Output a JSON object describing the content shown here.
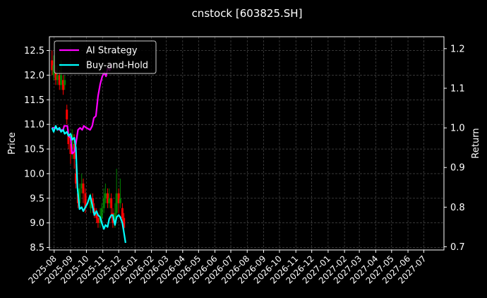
{
  "chart_data": {
    "type": "line",
    "title": "cnstock [603825.SH]",
    "ylabel": "Price",
    "y2label": "Return",
    "ylim": [
      8.45,
      12.78
    ],
    "y2lim": [
      0.692,
      1.23
    ],
    "yticks": [
      "8.5",
      "9.0",
      "9.5",
      "10.0",
      "10.5",
      "11.0",
      "11.5",
      "12.0",
      "12.5"
    ],
    "y2ticks": [
      "0.7",
      "0.8",
      "0.9",
      "1.0",
      "1.1",
      "1.2"
    ],
    "xticks": [
      "2025-08",
      "2025-09",
      "2025-10",
      "2025-11",
      "2025-12",
      "2026-01",
      "2026-02",
      "2026-03",
      "2026-04",
      "2026-05",
      "2026-06",
      "2026-07",
      "2026-08",
      "2026-09",
      "2026-10",
      "2026-11",
      "2026-12",
      "2027-01",
      "2027-02",
      "2027-03",
      "2027-04",
      "2027-05",
      "2027-06",
      "2027-07"
    ],
    "grid": true,
    "legend_position": "top-left",
    "legend": [
      {
        "name": "AI Strategy",
        "color": "#ff00ff"
      },
      {
        "name": "Buy-and-Hold",
        "color": "#00ffff"
      }
    ],
    "candles": {
      "up_color": "#008000",
      "down_color": "#ff0000",
      "bars": [
        {
          "d": "2025-07-28",
          "o": 12.3,
          "c": 12.1,
          "h": 12.5,
          "l": 12.0
        },
        {
          "d": "2025-07-31",
          "o": 12.0,
          "c": 12.2,
          "h": 12.4,
          "l": 11.9
        },
        {
          "d": "2025-08-04",
          "o": 12.1,
          "c": 11.9,
          "h": 12.2,
          "l": 11.8
        },
        {
          "d": "2025-08-07",
          "o": 11.9,
          "c": 12.0,
          "h": 12.2,
          "l": 11.8
        },
        {
          "d": "2025-08-11",
          "o": 12.0,
          "c": 11.8,
          "h": 12.1,
          "l": 11.7
        },
        {
          "d": "2025-08-14",
          "o": 11.8,
          "c": 12.0,
          "h": 12.3,
          "l": 11.7
        },
        {
          "d": "2025-08-18",
          "o": 11.9,
          "c": 11.7,
          "h": 12.0,
          "l": 11.6
        },
        {
          "d": "2025-08-21",
          "o": 11.8,
          "c": 11.9,
          "h": 12.0,
          "l": 11.7
        },
        {
          "d": "2025-08-25",
          "o": 11.3,
          "c": 11.1,
          "h": 11.4,
          "l": 11.0
        },
        {
          "d": "2025-08-28",
          "o": 10.8,
          "c": 10.6,
          "h": 10.9,
          "l": 10.5
        },
        {
          "d": "2025-09-01",
          "o": 10.6,
          "c": 10.4,
          "h": 10.8,
          "l": 10.2
        },
        {
          "d": "2025-09-04",
          "o": 10.5,
          "c": 10.8,
          "h": 10.9,
          "l": 10.3
        },
        {
          "d": "2025-09-08",
          "o": 10.6,
          "c": 10.3,
          "h": 10.8,
          "l": 10.1
        },
        {
          "d": "2025-09-11",
          "o": 10.0,
          "c": 9.8,
          "h": 10.2,
          "l": 9.7
        },
        {
          "d": "2025-09-15",
          "o": 9.6,
          "c": 9.4,
          "h": 9.7,
          "l": 9.3
        },
        {
          "d": "2025-09-18",
          "o": 9.4,
          "c": 9.7,
          "h": 9.8,
          "l": 9.3
        },
        {
          "d": "2025-09-22",
          "o": 9.7,
          "c": 9.8,
          "h": 10.0,
          "l": 9.6
        },
        {
          "d": "2025-09-25",
          "o": 9.8,
          "c": 9.6,
          "h": 9.9,
          "l": 9.4
        },
        {
          "d": "2025-09-29",
          "o": 9.6,
          "c": 9.3,
          "h": 9.7,
          "l": 9.2
        },
        {
          "d": "2025-10-09",
          "o": 9.3,
          "c": 9.5,
          "h": 9.6,
          "l": 9.2
        },
        {
          "d": "2025-10-13",
          "o": 9.5,
          "c": 9.3,
          "h": 9.6,
          "l": 9.2
        },
        {
          "d": "2025-10-16",
          "o": 9.3,
          "c": 9.2,
          "h": 9.4,
          "l": 9.1
        },
        {
          "d": "2025-10-20",
          "o": 9.2,
          "c": 9.1,
          "h": 9.3,
          "l": 9.0
        },
        {
          "d": "2025-10-23",
          "o": 9.1,
          "c": 9.0,
          "h": 9.2,
          "l": 8.9
        },
        {
          "d": "2025-10-27",
          "o": 9.0,
          "c": 9.1,
          "h": 9.3,
          "l": 8.9
        },
        {
          "d": "2025-10-30",
          "o": 9.1,
          "c": 9.3,
          "h": 9.4,
          "l": 9.0
        },
        {
          "d": "2025-11-03",
          "o": 9.3,
          "c": 9.5,
          "h": 9.7,
          "l": 9.2
        },
        {
          "d": "2025-11-06",
          "o": 9.5,
          "c": 9.6,
          "h": 9.8,
          "l": 9.4
        },
        {
          "d": "2025-11-10",
          "o": 9.6,
          "c": 9.4,
          "h": 9.7,
          "l": 9.3
        },
        {
          "d": "2025-11-13",
          "o": 9.4,
          "c": 9.5,
          "h": 9.7,
          "l": 9.3
        },
        {
          "d": "2025-11-17",
          "o": 9.5,
          "c": 9.3,
          "h": 9.6,
          "l": 9.1
        },
        {
          "d": "2025-11-20",
          "o": 9.2,
          "c": 9.0,
          "h": 9.3,
          "l": 8.9
        },
        {
          "d": "2025-11-24",
          "o": 9.0,
          "c": 9.2,
          "h": 9.4,
          "l": 8.9
        },
        {
          "d": "2025-11-27",
          "o": 9.2,
          "c": 9.6,
          "h": 10.1,
          "l": 9.1
        },
        {
          "d": "2025-12-01",
          "o": 9.6,
          "c": 9.4,
          "h": 9.7,
          "l": 9.2
        },
        {
          "d": "2025-12-04",
          "o": 9.4,
          "c": 9.5,
          "h": 9.9,
          "l": 9.3
        },
        {
          "d": "2025-12-08",
          "o": 9.3,
          "c": 9.1,
          "h": 9.4,
          "l": 9.0
        },
        {
          "d": "2025-12-11",
          "o": 9.1,
          "c": 8.9,
          "h": 9.2,
          "l": 8.8
        }
      ]
    },
    "series": [
      {
        "name": "AI Strategy",
        "axis": "right",
        "color": "#ff00ff",
        "points": [
          [
            "2025-07-28",
            1.0
          ],
          [
            "2025-08-04",
            1.0
          ],
          [
            "2025-08-11",
            0.995
          ],
          [
            "2025-08-18",
            0.995
          ],
          [
            "2025-08-20",
            1.005
          ],
          [
            "2025-08-26",
            1.005
          ],
          [
            "2025-08-28",
            0.98
          ],
          [
            "2025-09-01",
            0.975
          ],
          [
            "2025-09-04",
            0.935
          ],
          [
            "2025-09-08",
            0.94
          ],
          [
            "2025-09-11",
            0.96
          ],
          [
            "2025-09-15",
            0.995
          ],
          [
            "2025-09-19",
            1.0
          ],
          [
            "2025-09-23",
            0.995
          ],
          [
            "2025-09-26",
            1.005
          ],
          [
            "2025-10-01",
            1.0
          ],
          [
            "2025-10-08",
            0.995
          ],
          [
            "2025-10-12",
            1.005
          ],
          [
            "2025-10-15",
            1.025
          ],
          [
            "2025-10-19",
            1.03
          ],
          [
            "2025-10-23",
            1.08
          ],
          [
            "2025-10-27",
            1.11
          ],
          [
            "2025-10-31",
            1.13
          ],
          [
            "2025-11-04",
            1.14
          ],
          [
            "2025-11-07",
            1.13
          ],
          [
            "2025-11-10",
            1.15
          ],
          [
            "2025-11-14",
            1.145
          ],
          [
            "2025-11-17",
            1.16
          ]
        ]
      },
      {
        "name": "Buy-and-Hold",
        "axis": "right",
        "color": "#00ffff",
        "points": [
          [
            "2025-07-28",
            1.0
          ],
          [
            "2025-07-31",
            0.99
          ],
          [
            "2025-08-04",
            1.005
          ],
          [
            "2025-08-07",
            0.995
          ],
          [
            "2025-08-11",
            1.0
          ],
          [
            "2025-08-14",
            0.99
          ],
          [
            "2025-08-18",
            0.995
          ],
          [
            "2025-08-21",
            0.985
          ],
          [
            "2025-08-25",
            0.99
          ],
          [
            "2025-08-28",
            0.98
          ],
          [
            "2025-09-01",
            0.985
          ],
          [
            "2025-09-04",
            0.97
          ],
          [
            "2025-09-08",
            0.975
          ],
          [
            "2025-09-11",
            0.95
          ],
          [
            "2025-09-14",
            0.85
          ],
          [
            "2025-09-18",
            0.795
          ],
          [
            "2025-09-22",
            0.8
          ],
          [
            "2025-09-25",
            0.79
          ],
          [
            "2025-09-29",
            0.8
          ],
          [
            "2025-10-03",
            0.81
          ],
          [
            "2025-10-08",
            0.83
          ],
          [
            "2025-10-13",
            0.8
          ],
          [
            "2025-10-16",
            0.78
          ],
          [
            "2025-10-20",
            0.79
          ],
          [
            "2025-10-23",
            0.78
          ],
          [
            "2025-10-27",
            0.775
          ],
          [
            "2025-10-30",
            0.76
          ],
          [
            "2025-11-03",
            0.745
          ],
          [
            "2025-11-06",
            0.755
          ],
          [
            "2025-11-10",
            0.75
          ],
          [
            "2025-11-13",
            0.77
          ],
          [
            "2025-11-17",
            0.78
          ],
          [
            "2025-11-20",
            0.78
          ],
          [
            "2025-11-24",
            0.755
          ],
          [
            "2025-11-27",
            0.775
          ],
          [
            "2025-12-01",
            0.78
          ],
          [
            "2025-12-04",
            0.775
          ],
          [
            "2025-12-08",
            0.76
          ],
          [
            "2025-12-11",
            0.735
          ],
          [
            "2025-12-14",
            0.71
          ]
        ]
      }
    ]
  }
}
